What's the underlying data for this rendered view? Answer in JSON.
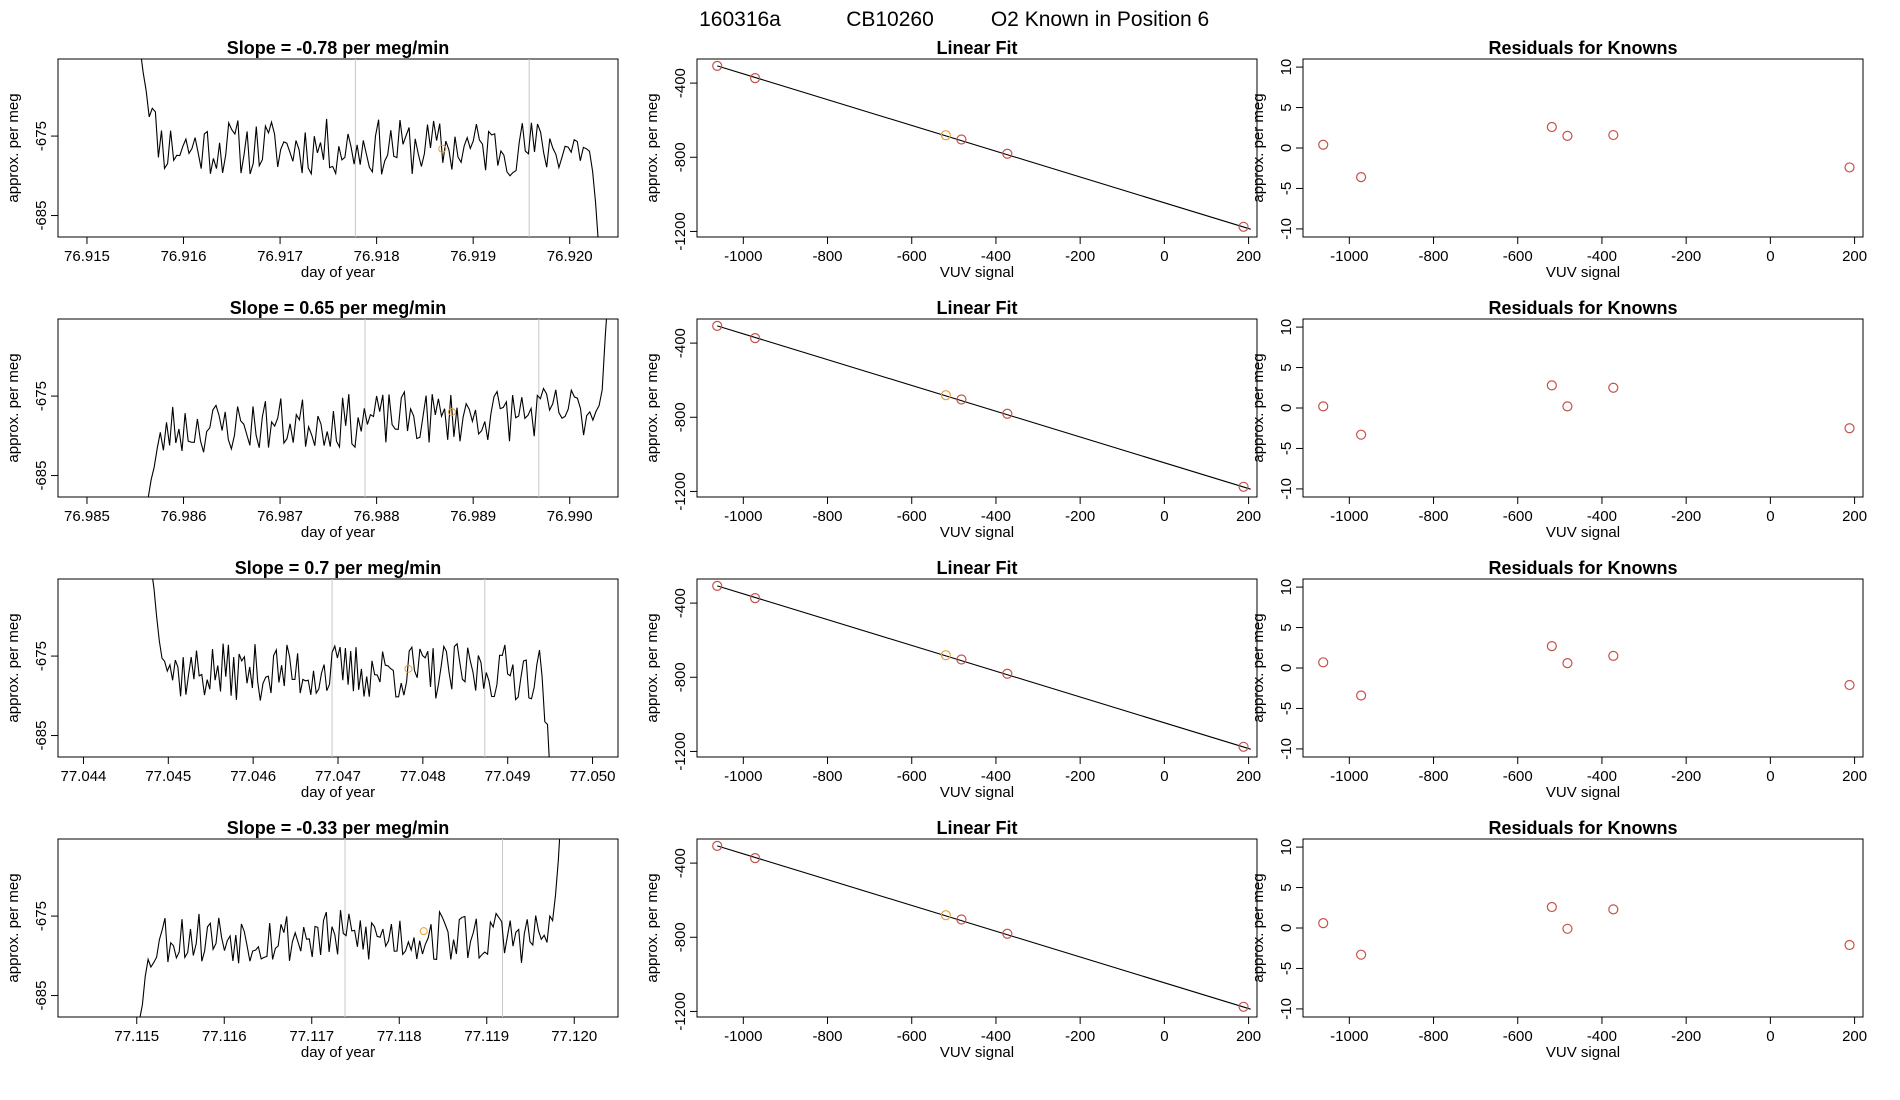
{
  "page_title": {
    "run": "160316a",
    "cylinder": "CB10260",
    "position_text": "O2 Known in Position  6"
  },
  "colors": {
    "line": "#000000",
    "known_points": "#c8504a",
    "highlight_point": "#e8a030",
    "marker_lines": "#c8c8c8",
    "frame": "#000000"
  },
  "chart_data": [
    {
      "type": "line",
      "title": "Slope =  -0.78  per meg/min",
      "xlabel": "day of year",
      "ylabel": "approx. per meg",
      "xlim": [
        76.9147,
        76.9205
      ],
      "ylim": [
        -687.7,
        -665.3
      ],
      "xticks": [
        "76.915",
        "76.916",
        "76.917",
        "76.918",
        "76.919",
        "76.920"
      ],
      "xtick_values": [
        76.915,
        76.916,
        76.917,
        76.918,
        76.919,
        76.92
      ],
      "yticks": [
        "-675",
        "-685"
      ],
      "ytick_values": [
        -675,
        -685
      ],
      "markers_x": [
        76.91778,
        76.91958
      ],
      "highlight_point": {
        "x": 76.91868,
        "y": -676.6
      },
      "series": [
        {
          "seed": 11,
          "trend": 0.0,
          "x_start": 76.91555,
          "x_end": 76.9203,
          "baseline": -676.4,
          "amplitude": 3.6,
          "start_from": -664.0,
          "end_to": -689.0
        }
      ]
    },
    {
      "type": "scatter",
      "title": "Linear Fit",
      "xlabel": "VUV signal",
      "ylabel": "approx. per meg",
      "xlim": [
        -1110,
        220
      ],
      "ylim": [
        -1230,
        -270
      ],
      "xticks": [
        "-1000",
        "-800",
        "-600",
        "-400",
        "-200",
        "0",
        "200"
      ],
      "xtick_values": [
        -1000,
        -800,
        -600,
        -400,
        -200,
        0,
        200
      ],
      "yticks": [
        "-400",
        "-800",
        "-1200"
      ],
      "ytick_values": [
        -400,
        -800,
        -1200
      ],
      "fit_line": {
        "x": [
          -1062,
          205
        ],
        "y": [
          -307,
          -1188
        ]
      },
      "points": [
        {
          "x": -1062,
          "y": -307
        },
        {
          "x": -972,
          "y": -373
        },
        {
          "x": -519,
          "y": -681
        },
        {
          "x": -482,
          "y": -704
        },
        {
          "x": -373,
          "y": -781
        },
        {
          "x": 188,
          "y": -1175
        }
      ],
      "highlight_index": 2
    },
    {
      "type": "scatter",
      "title": "Residuals for Knowns",
      "xlabel": "VUV signal",
      "ylabel": "approx. per meg",
      "xlim": [
        -1110,
        220
      ],
      "ylim": [
        -11,
        11
      ],
      "xticks": [
        "-1000",
        "-800",
        "-600",
        "-400",
        "-200",
        "0",
        "200"
      ],
      "xtick_values": [
        -1000,
        -800,
        -600,
        -400,
        -200,
        0,
        200
      ],
      "yticks": [
        "10",
        "5",
        "0",
        "-5",
        "-10"
      ],
      "ytick_values": [
        10,
        5,
        0,
        -5,
        -10
      ],
      "points": [
        {
          "x": -1062,
          "y": 0.4
        },
        {
          "x": -972,
          "y": -3.6
        },
        {
          "x": -519,
          "y": 2.6
        },
        {
          "x": -482,
          "y": 1.5
        },
        {
          "x": -373,
          "y": 1.6
        },
        {
          "x": 188,
          "y": -2.4
        }
      ]
    },
    {
      "type": "line",
      "title": "Slope =  0.65  per meg/min",
      "xlabel": "day of year",
      "ylabel": "approx. per meg",
      "xlim": [
        76.9847,
        76.9905
      ],
      "ylim": [
        -687.7,
        -665.3
      ],
      "xticks": [
        "76.985",
        "76.986",
        "76.987",
        "76.988",
        "76.989",
        "76.990"
      ],
      "xtick_values": [
        76.985,
        76.986,
        76.987,
        76.988,
        76.989,
        76.99
      ],
      "yticks": [
        "-675",
        "-685"
      ],
      "ytick_values": [
        -675,
        -685
      ],
      "markers_x": [
        76.98788,
        76.98968
      ],
      "highlight_point": {
        "x": 76.98878,
        "y": -677.0
      },
      "series": [
        {
          "seed": 23,
          "trend": 2.5,
          "x_start": 76.9856,
          "x_end": 76.9904,
          "baseline": -678.0,
          "amplitude": 3.4,
          "start_from": -690.0,
          "end_to": -662.0
        }
      ]
    },
    {
      "type": "scatter",
      "title": "Linear Fit",
      "xlabel": "VUV signal",
      "ylabel": "approx. per meg",
      "xlim": [
        -1110,
        220
      ],
      "ylim": [
        -1230,
        -270
      ],
      "xticks": [
        "-1000",
        "-800",
        "-600",
        "-400",
        "-200",
        "0",
        "200"
      ],
      "xtick_values": [
        -1000,
        -800,
        -600,
        -400,
        -200,
        0,
        200
      ],
      "yticks": [
        "-400",
        "-800",
        "-1200"
      ],
      "ytick_values": [
        -400,
        -800,
        -1200
      ],
      "fit_line": {
        "x": [
          -1062,
          205
        ],
        "y": [
          -307,
          -1188
        ]
      },
      "points": [
        {
          "x": -1062,
          "y": -307
        },
        {
          "x": -972,
          "y": -373
        },
        {
          "x": -519,
          "y": -681
        },
        {
          "x": -482,
          "y": -704
        },
        {
          "x": -373,
          "y": -781
        },
        {
          "x": 188,
          "y": -1175
        }
      ],
      "highlight_index": 2
    },
    {
      "type": "scatter",
      "title": "Residuals for Knowns",
      "xlabel": "VUV signal",
      "ylabel": "approx. per meg",
      "xlim": [
        -1110,
        220
      ],
      "ylim": [
        -11,
        11
      ],
      "xticks": [
        "-1000",
        "-800",
        "-600",
        "-400",
        "-200",
        "0",
        "200"
      ],
      "xtick_values": [
        -1000,
        -800,
        -600,
        -400,
        -200,
        0,
        200
      ],
      "yticks": [
        "10",
        "5",
        "0",
        "-5",
        "-10"
      ],
      "ytick_values": [
        10,
        5,
        0,
        -5,
        -10
      ],
      "points": [
        {
          "x": -1062,
          "y": 0.2
        },
        {
          "x": -972,
          "y": -3.3
        },
        {
          "x": -519,
          "y": 2.8
        },
        {
          "x": -482,
          "y": 0.2
        },
        {
          "x": -373,
          "y": 2.5
        },
        {
          "x": 188,
          "y": -2.5
        }
      ]
    },
    {
      "type": "line",
      "title": "Slope =  0.7  per meg/min",
      "xlabel": "day of year",
      "ylabel": "approx. per meg",
      "xlim": [
        77.0437,
        77.0503
      ],
      "ylim": [
        -687.7,
        -665.3
      ],
      "xticks": [
        "77.044",
        "77.045",
        "77.046",
        "77.047",
        "77.048",
        "77.049",
        "77.050"
      ],
      "xtick_values": [
        77.044,
        77.045,
        77.046,
        77.047,
        77.048,
        77.049,
        77.05
      ],
      "yticks": [
        "-675",
        "-685"
      ],
      "ytick_values": [
        -675,
        -685
      ],
      "markers_x": [
        77.04693,
        77.04873
      ],
      "highlight_point": {
        "x": 77.04783,
        "y": -676.6
      },
      "series": [
        {
          "seed": 37,
          "trend": 0.0,
          "x_start": 77.0448,
          "x_end": 77.0495,
          "baseline": -677.0,
          "amplitude": 3.6,
          "start_from": -664.0,
          "end_to": -690.0
        }
      ]
    },
    {
      "type": "scatter",
      "title": "Linear Fit",
      "xlabel": "VUV signal",
      "ylabel": "approx. per meg",
      "xlim": [
        -1110,
        220
      ],
      "ylim": [
        -1230,
        -270
      ],
      "xticks": [
        "-1000",
        "-800",
        "-600",
        "-400",
        "-200",
        "0",
        "200"
      ],
      "xtick_values": [
        -1000,
        -800,
        -600,
        -400,
        -200,
        0,
        200
      ],
      "yticks": [
        "-400",
        "-800",
        "-1200"
      ],
      "ytick_values": [
        -400,
        -800,
        -1200
      ],
      "fit_line": {
        "x": [
          -1062,
          205
        ],
        "y": [
          -307,
          -1188
        ]
      },
      "points": [
        {
          "x": -1062,
          "y": -307
        },
        {
          "x": -972,
          "y": -373
        },
        {
          "x": -519,
          "y": -681
        },
        {
          "x": -482,
          "y": -704
        },
        {
          "x": -373,
          "y": -781
        },
        {
          "x": 188,
          "y": -1175
        }
      ],
      "highlight_index": 2
    },
    {
      "type": "scatter",
      "title": "Residuals for Knowns",
      "xlabel": "VUV signal",
      "ylabel": "approx. per meg",
      "xlim": [
        -1110,
        220
      ],
      "ylim": [
        -11,
        11
      ],
      "xticks": [
        "-1000",
        "-800",
        "-600",
        "-400",
        "-200",
        "0",
        "200"
      ],
      "xtick_values": [
        -1000,
        -800,
        -600,
        -400,
        -200,
        0,
        200
      ],
      "yticks": [
        "10",
        "5",
        "0",
        "-5",
        "-10"
      ],
      "ytick_values": [
        10,
        5,
        0,
        -5,
        -10
      ],
      "points": [
        {
          "x": -1062,
          "y": 0.7
        },
        {
          "x": -972,
          "y": -3.4
        },
        {
          "x": -519,
          "y": 2.7
        },
        {
          "x": -482,
          "y": 0.6
        },
        {
          "x": -373,
          "y": 1.5
        },
        {
          "x": 188,
          "y": -2.1
        }
      ]
    },
    {
      "type": "line",
      "title": "Slope =  -0.33  per meg/min",
      "xlabel": "day of year",
      "ylabel": "approx. per meg",
      "xlim": [
        77.1141,
        77.1205
      ],
      "ylim": [
        -687.7,
        -665.3
      ],
      "xticks": [
        "77.115",
        "77.116",
        "77.117",
        "77.118",
        "77.119",
        "77.120"
      ],
      "xtick_values": [
        77.115,
        77.116,
        77.117,
        77.118,
        77.119,
        77.12
      ],
      "yticks": [
        "-675",
        "-685"
      ],
      "ytick_values": [
        -675,
        -685
      ],
      "markers_x": [
        77.11738,
        77.11918
      ],
      "highlight_point": {
        "x": 77.11828,
        "y": -676.9
      },
      "series": [
        {
          "seed": 53,
          "trend": 0.0,
          "x_start": 77.115,
          "x_end": 77.11985,
          "baseline": -677.6,
          "amplitude": 3.4,
          "start_from": -690.0,
          "end_to": -662.0
        }
      ]
    },
    {
      "type": "scatter",
      "title": "Linear Fit",
      "xlabel": "VUV signal",
      "ylabel": "approx. per meg",
      "xlim": [
        -1110,
        220
      ],
      "ylim": [
        -1230,
        -270
      ],
      "xticks": [
        "-1000",
        "-800",
        "-600",
        "-400",
        "-200",
        "0",
        "200"
      ],
      "xtick_values": [
        -1000,
        -800,
        -600,
        -400,
        -200,
        0,
        200
      ],
      "yticks": [
        "-400",
        "-800",
        "-1200"
      ],
      "ytick_values": [
        -400,
        -800,
        -1200
      ],
      "fit_line": {
        "x": [
          -1062,
          205
        ],
        "y": [
          -307,
          -1188
        ]
      },
      "points": [
        {
          "x": -1062,
          "y": -307
        },
        {
          "x": -972,
          "y": -373
        },
        {
          "x": -519,
          "y": -681
        },
        {
          "x": -482,
          "y": -704
        },
        {
          "x": -373,
          "y": -781
        },
        {
          "x": 188,
          "y": -1175
        }
      ],
      "highlight_index": 2
    },
    {
      "type": "scatter",
      "title": "Residuals for Knowns",
      "xlabel": "VUV signal",
      "ylabel": "approx. per meg",
      "xlim": [
        -1110,
        220
      ],
      "ylim": [
        -11,
        11
      ],
      "xticks": [
        "-1000",
        "-800",
        "-600",
        "-400",
        "-200",
        "0",
        "200"
      ],
      "xtick_values": [
        -1000,
        -800,
        -600,
        -400,
        -200,
        0,
        200
      ],
      "yticks": [
        "10",
        "5",
        "0",
        "-5",
        "-10"
      ],
      "ytick_values": [
        10,
        5,
        0,
        -5,
        -10
      ],
      "points": [
        {
          "x": -1062,
          "y": 0.6
        },
        {
          "x": -972,
          "y": -3.3
        },
        {
          "x": -519,
          "y": 2.6
        },
        {
          "x": -482,
          "y": -0.1
        },
        {
          "x": -373,
          "y": 2.3
        },
        {
          "x": 188,
          "y": -2.1
        }
      ]
    }
  ]
}
